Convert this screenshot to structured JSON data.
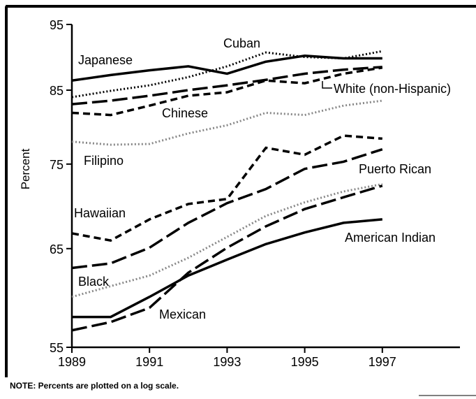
{
  "chart_data": {
    "type": "line",
    "y_label": "Percent",
    "note": "NOTE: Percents are plotted on a log scale.",
    "x": [
      1989,
      1990,
      1991,
      1992,
      1993,
      1994,
      1995,
      1996,
      1997
    ],
    "xlim": [
      1989,
      1999
    ],
    "xticks": [
      1989,
      1991,
      1993,
      1995,
      1997
    ],
    "ylim": [
      55,
      95
    ],
    "yticks": [
      55,
      65,
      75,
      85,
      95
    ],
    "log_scale_y": true,
    "series": [
      {
        "name": "Japanese",
        "color": "#000000",
        "style": "solid",
        "values": [
          86.4,
          87.2,
          87.9,
          88.5,
          87.4,
          89.2,
          90.1,
          89.7,
          89.7
        ]
      },
      {
        "name": "Cuban",
        "color": "#000000",
        "style": "dotted",
        "values": [
          84.0,
          84.9,
          85.7,
          86.9,
          88.5,
          90.6,
          89.9,
          89.7,
          90.8
        ]
      },
      {
        "name": "White (non-Hispanic)",
        "color": "#000000",
        "style": "long-dash",
        "values": [
          83.0,
          83.5,
          84.2,
          85.0,
          85.7,
          86.5,
          87.4,
          88.0,
          88.4
        ]
      },
      {
        "name": "Chinese",
        "color": "#000000",
        "style": "short-dash",
        "values": [
          81.8,
          81.5,
          82.8,
          84.2,
          84.7,
          86.4,
          86.0,
          87.4,
          88.3
        ]
      },
      {
        "name": "Filipino",
        "color": "#888888",
        "style": "dotted",
        "values": [
          77.9,
          77.5,
          77.6,
          79.0,
          80.1,
          81.8,
          81.5,
          82.8,
          83.5
        ]
      },
      {
        "name": "Puerto Rican",
        "color": "#000000",
        "style": "long-dash",
        "values": [
          62.9,
          63.4,
          65.1,
          67.9,
          70.2,
          71.9,
          74.4,
          75.3,
          76.9
        ]
      },
      {
        "name": "Hawaiian",
        "color": "#000000",
        "style": "short-dash",
        "values": [
          66.7,
          65.9,
          68.3,
          70.1,
          70.7,
          77.1,
          76.2,
          78.7,
          78.3
        ]
      },
      {
        "name": "Black",
        "color": "#888888",
        "style": "dotted",
        "values": [
          59.9,
          61.0,
          62.1,
          64.0,
          66.3,
          68.7,
          70.3,
          71.6,
          72.5
        ]
      },
      {
        "name": "Mexican",
        "color": "#000000",
        "style": "long-dash",
        "values": [
          56.6,
          57.4,
          58.8,
          62.4,
          65.1,
          67.5,
          69.5,
          70.9,
          72.3
        ]
      },
      {
        "name": "American Indian",
        "color": "#000000",
        "style": "solid",
        "values": [
          57.9,
          57.9,
          59.9,
          62.1,
          63.8,
          65.5,
          66.8,
          67.9,
          68.3
        ]
      }
    ]
  }
}
